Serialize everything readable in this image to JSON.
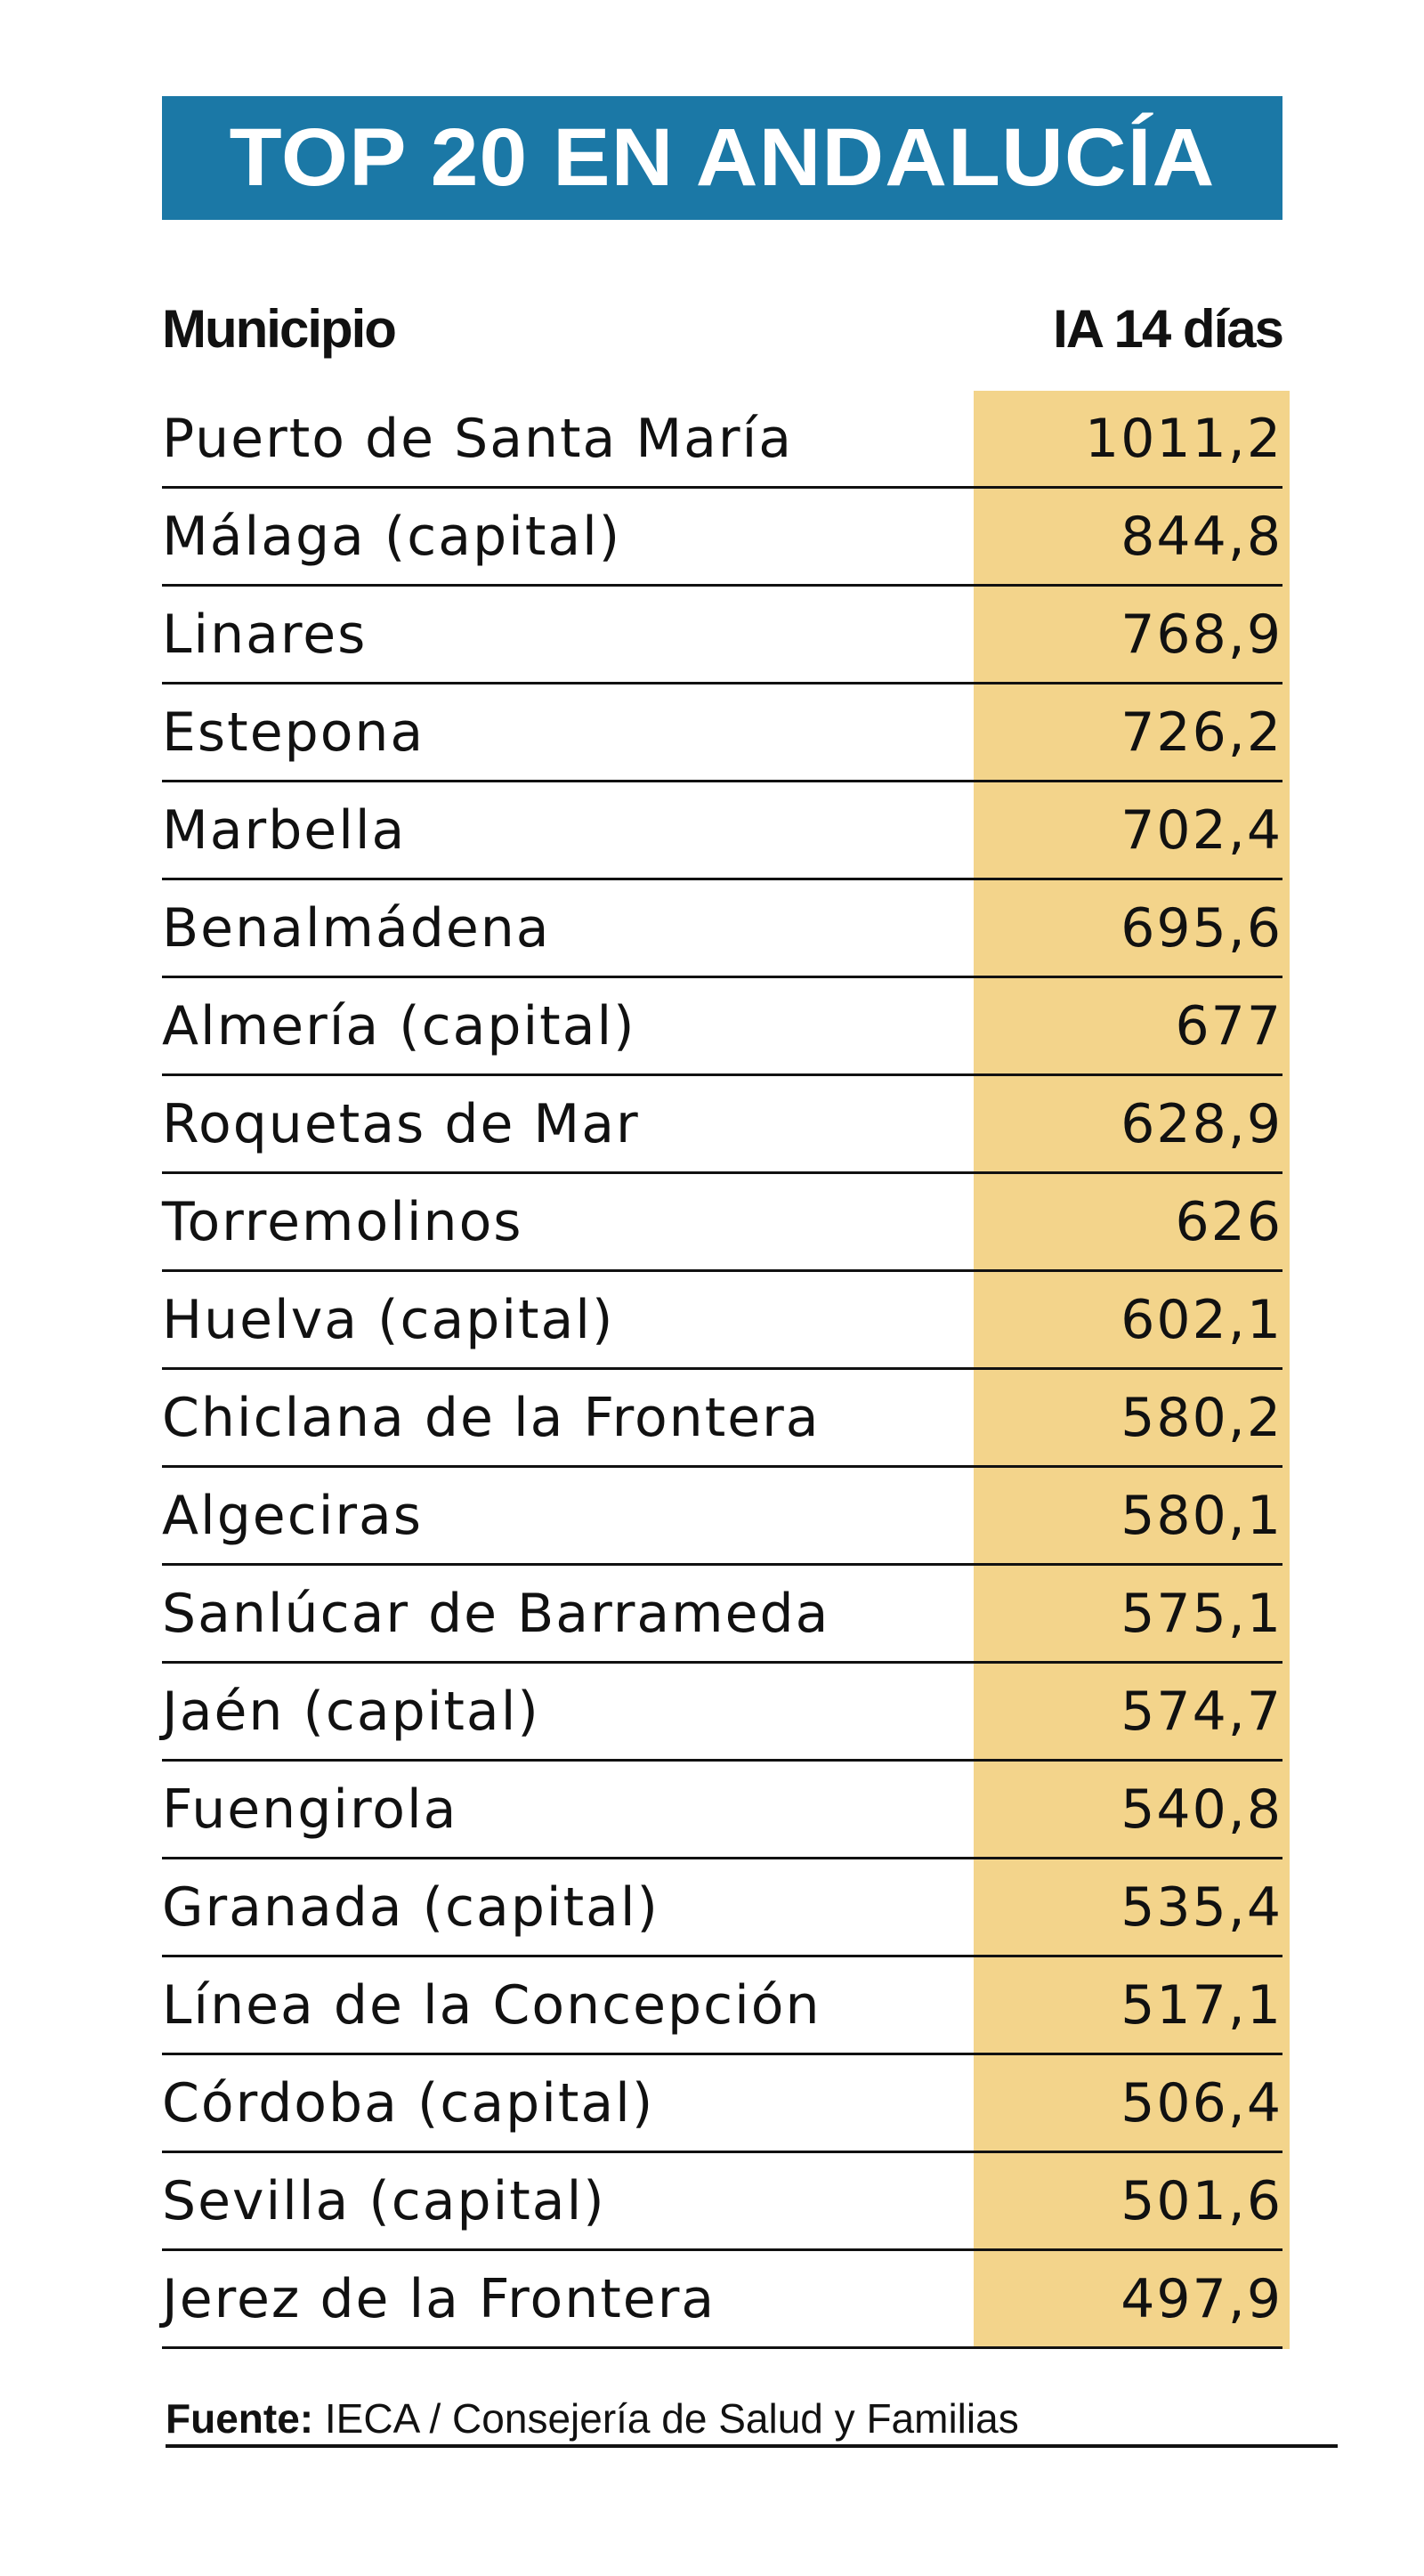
{
  "title": "TOP 20 EN ANDALUCÍA",
  "colors": {
    "title_bg": "#1b78a6",
    "value_column_bg": "#f3d48b"
  },
  "table": {
    "headers": [
      "Municipio",
      "IA 14 días"
    ],
    "rows": [
      {
        "municipio": "Puerto de Santa María",
        "ia": "1011,2"
      },
      {
        "municipio": "Málaga (capital)",
        "ia": "844,8"
      },
      {
        "municipio": "Linares",
        "ia": "768,9"
      },
      {
        "municipio": "Estepona",
        "ia": "726,2"
      },
      {
        "municipio": "Marbella",
        "ia": "702,4"
      },
      {
        "municipio": "Benalmádena",
        "ia": "695,6"
      },
      {
        "municipio": "Almería (capital)",
        "ia": "677"
      },
      {
        "municipio": "Roquetas de Mar",
        "ia": "628,9"
      },
      {
        "municipio": "Torremolinos",
        "ia": "626"
      },
      {
        "municipio": "Huelva (capital)",
        "ia": "602,1"
      },
      {
        "municipio": "Chiclana de la Frontera",
        "ia": "580,2"
      },
      {
        "municipio": "Algeciras",
        "ia": "580,1"
      },
      {
        "municipio": "Sanlúcar de Barrameda",
        "ia": "575,1"
      },
      {
        "municipio": "Jaén (capital)",
        "ia": "574,7"
      },
      {
        "municipio": "Fuengirola",
        "ia": "540,8"
      },
      {
        "municipio": "Granada (capital)",
        "ia": "535,4"
      },
      {
        "municipio": "Línea de la Concepción",
        "ia": "517,1"
      },
      {
        "municipio": "Córdoba (capital)",
        "ia": "506,4"
      },
      {
        "municipio": "Sevilla (capital)",
        "ia": "501,6"
      },
      {
        "municipio": "Jerez de la Frontera",
        "ia": "497,9"
      }
    ]
  },
  "footer": {
    "label": "Fuente:",
    "text": " IECA / Consejería de Salud y Familias"
  }
}
